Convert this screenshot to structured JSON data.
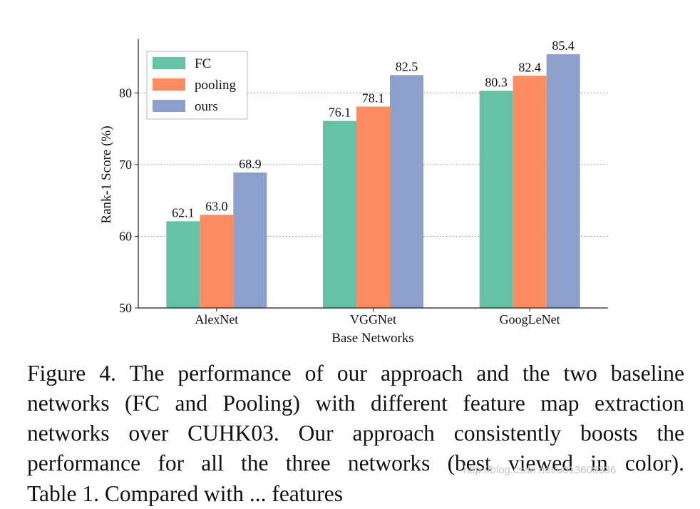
{
  "chart_data": {
    "type": "bar",
    "title": "",
    "xlabel": "Base Networks",
    "ylabel": "Rank-1 Score (%)",
    "categories": [
      "AlexNet",
      "VGGNet",
      "GoogLeNet"
    ],
    "ylim": [
      50,
      87.5
    ],
    "yticks": [
      "50",
      "60",
      "70",
      "80"
    ],
    "grid": "horizontal dotted",
    "legend_placement": "top-left",
    "series": [
      {
        "name": "FC",
        "values": [
          62.1,
          76.1,
          80.3
        ],
        "labels": [
          "62.1",
          "76.1",
          "80.3"
        ],
        "color": "#66c2a5"
      },
      {
        "name": "pooling",
        "values": [
          63.0,
          78.1,
          82.4
        ],
        "labels": [
          "63.0",
          "78.1",
          "82.4"
        ],
        "color": "#fc8d62"
      },
      {
        "name": "ours",
        "values": [
          68.9,
          82.5,
          85.4
        ],
        "labels": [
          "68.9",
          "82.5",
          "85.4"
        ],
        "color": "#8da0cb"
      }
    ]
  },
  "caption": {
    "lines": [
      "Figure 4. The performance of our approach and the two baseline",
      "networks (FC and Pooling) with different feature map extraction",
      "networks over CUHK03.  Our approach consistently boosts the",
      "performance for all the three networks (best viewed in color)."
    ],
    "next_line_fragment": "Table 1. Compared with ... features",
    "watermark": "http://blog.csdn.net/u013608336"
  }
}
